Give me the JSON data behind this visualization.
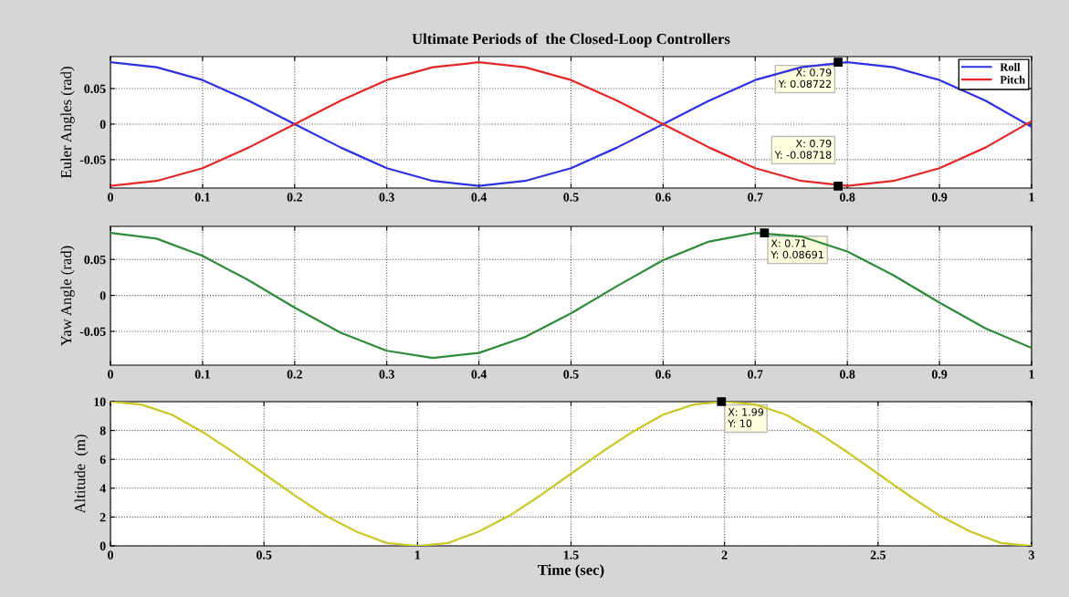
{
  "chart_data": [
    {
      "type": "line",
      "title": "Ultimate Periods of  the Closed-Loop Controllers",
      "ylabel": "Euler Angles (rad)",
      "x": [
        0,
        0.05,
        0.1,
        0.15,
        0.2,
        0.25,
        0.3,
        0.35,
        0.4,
        0.45,
        0.5,
        0.55,
        0.6,
        0.65,
        0.7,
        0.75,
        0.8,
        0.85,
        0.9,
        0.95,
        1
      ],
      "series": [
        {
          "name": "Roll",
          "color": "#3030e0",
          "values": [
            0.087,
            0.08,
            0.062,
            0.033,
            0,
            -0.033,
            -0.062,
            -0.08,
            -0.087,
            -0.08,
            -0.062,
            -0.033,
            0,
            0.033,
            0.062,
            0.08,
            0.087,
            0.08,
            0.062,
            0.033,
            -0.004
          ]
        },
        {
          "name": "Pitch",
          "color": "#e02828",
          "values": [
            -0.087,
            -0.08,
            -0.062,
            -0.033,
            0,
            0.033,
            0.062,
            0.08,
            0.087,
            0.08,
            0.062,
            0.033,
            0,
            -0.033,
            -0.062,
            -0.08,
            -0.087,
            -0.08,
            -0.062,
            -0.033,
            0.004
          ]
        }
      ],
      "xlim": [
        0,
        1
      ],
      "xticks": [
        0,
        0.1,
        0.2,
        0.3,
        0.4,
        0.5,
        0.6,
        0.7,
        0.8,
        0.9,
        1
      ],
      "ylim": [
        -0.09,
        0.095
      ],
      "yticks": [
        -0.05,
        0,
        0.05
      ],
      "grid": true,
      "legend": "top right",
      "annotations": [
        {
          "text": "X: 0.79\nY: 0.08722",
          "x": 0.79,
          "y": 0.08722
        },
        {
          "text": "X: 0.79\nY: -0.08718",
          "x": 0.79,
          "y": -0.08718
        }
      ]
    },
    {
      "type": "line",
      "ylabel": "Yaw Angle (rad)",
      "x": [
        0,
        0.05,
        0.1,
        0.15,
        0.2,
        0.25,
        0.3,
        0.35,
        0.4,
        0.45,
        0.5,
        0.55,
        0.6,
        0.65,
        0.7,
        0.75,
        0.8,
        0.85,
        0.9,
        0.95,
        1
      ],
      "series": [
        {
          "color": "#2f8a3a",
          "values": [
            0.087,
            0.079,
            0.055,
            0.021,
            -0.017,
            -0.052,
            -0.077,
            -0.087,
            -0.08,
            -0.058,
            -0.025,
            0.013,
            0.049,
            0.075,
            0.087,
            0.082,
            0.061,
            0.028,
            -0.01,
            -0.046,
            -0.073
          ]
        }
      ],
      "xlim": [
        0,
        1
      ],
      "xticks": [
        0,
        0.1,
        0.2,
        0.3,
        0.4,
        0.5,
        0.6,
        0.7,
        0.8,
        0.9,
        1
      ],
      "ylim": [
        -0.097,
        0.096
      ],
      "yticks": [
        -0.05,
        0,
        0.05
      ],
      "grid": true,
      "annotations": [
        {
          "text": "X: 0.71\nY: 0.08691",
          "x": 0.71,
          "y": 0.08691
        }
      ]
    },
    {
      "type": "line",
      "ylabel": "Altitude  (m)",
      "xlabel": "Time (sec)",
      "x": [
        0,
        0.1,
        0.2,
        0.3,
        0.4,
        0.5,
        0.6,
        0.7,
        0.8,
        0.9,
        1,
        1.1,
        1.2,
        1.3,
        1.4,
        1.5,
        1.6,
        1.7,
        1.8,
        1.9,
        2,
        2.1,
        2.2,
        2.3,
        2.4,
        2.5,
        2.6,
        2.7,
        2.8,
        2.9,
        3
      ],
      "series": [
        {
          "color": "#c8c828",
          "values": [
            10,
            9.8,
            9.1,
            7.9,
            6.5,
            5,
            3.5,
            2.1,
            1,
            0.2,
            0,
            0.2,
            1,
            2.1,
            3.5,
            5,
            6.5,
            7.9,
            9.1,
            9.8,
            10,
            9.8,
            9.1,
            7.9,
            6.5,
            5,
            3.5,
            2.1,
            1,
            0.2,
            0
          ]
        }
      ],
      "xlim": [
        0,
        3
      ],
      "xticks": [
        0,
        0.5,
        1,
        1.5,
        2,
        2.5,
        3
      ],
      "ylim": [
        0,
        10
      ],
      "yticks": [
        0,
        2,
        4,
        6,
        8,
        10
      ],
      "grid": true,
      "annotations": [
        {
          "text": "X: 1.99\nY: 10",
          "x": 1.99,
          "y": 10
        }
      ]
    }
  ]
}
